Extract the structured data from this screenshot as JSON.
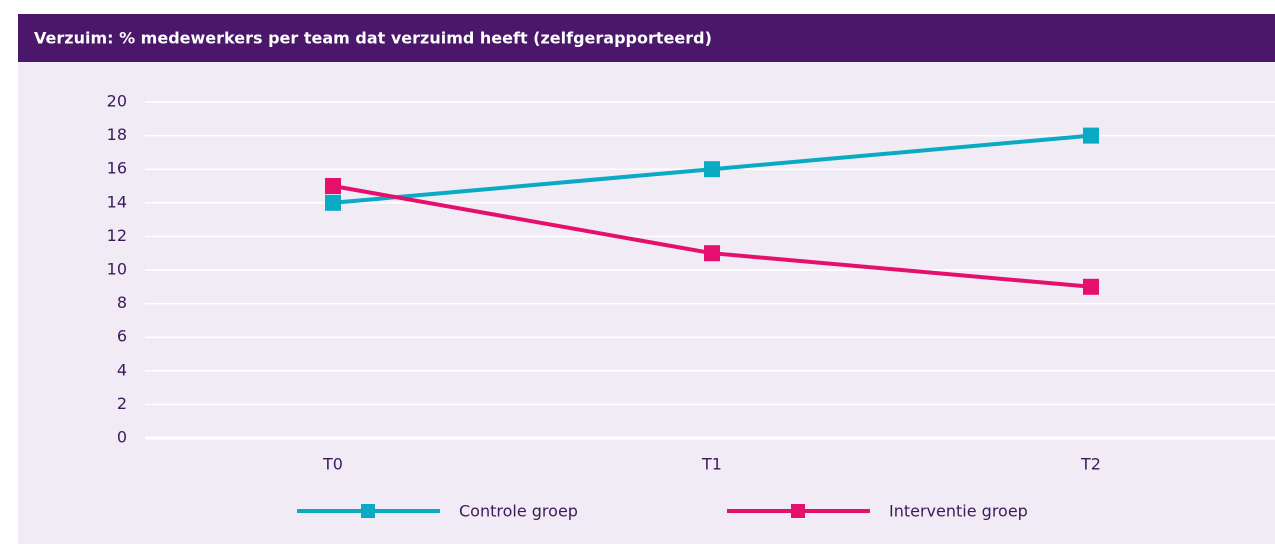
{
  "chart_data": {
    "type": "line",
    "title": "Verzuim: % medewerkers per team dat verzuimd heeft (zelfgerapporteerd)",
    "categories": [
      "T0",
      "T1",
      "T2"
    ],
    "series": [
      {
        "name": "Controle groep",
        "color": "#0aa9c4",
        "values": [
          14,
          16,
          18
        ]
      },
      {
        "name": "Interventie groep",
        "color": "#e5106e",
        "values": [
          15,
          11,
          9
        ]
      }
    ],
    "ylim": [
      0,
      20
    ],
    "yticks": [
      0,
      2,
      4,
      6,
      8,
      10,
      12,
      14,
      16,
      18,
      20
    ],
    "grid": true,
    "legend": "bottom"
  }
}
